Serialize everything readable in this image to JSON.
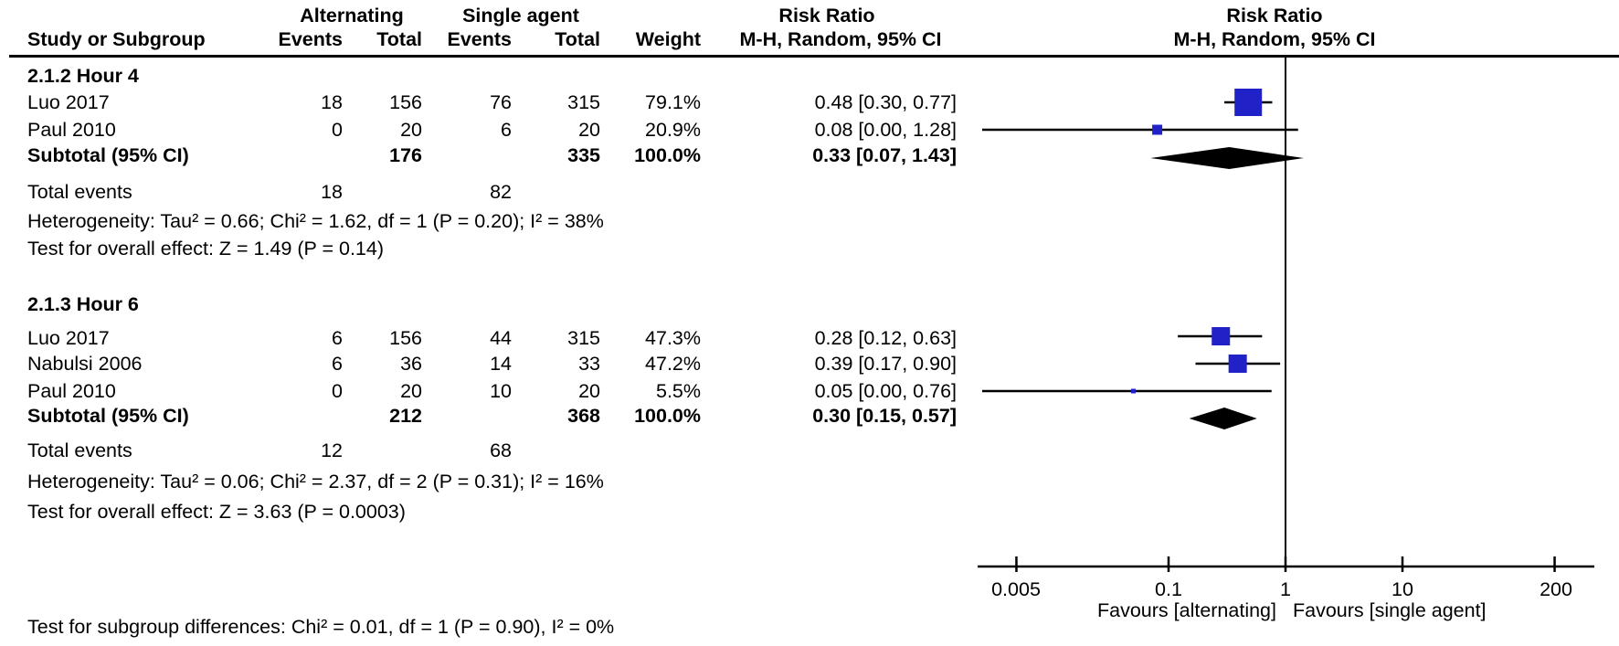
{
  "header": {
    "group1": "Alternating",
    "group2": "Single agent",
    "risk_ratio_left": "Risk Ratio",
    "risk_ratio_right": "Risk Ratio",
    "col_study": "Study or Subgroup",
    "col_events1": "Events",
    "col_total1": "Total",
    "col_events2": "Events",
    "col_total2": "Total",
    "col_weight": "Weight",
    "col_ci_left": "M-H, Random, 95% CI",
    "col_ci_right": "M-H, Random, 95% CI"
  },
  "subgroups": [
    {
      "label": "2.1.2 Hour 4",
      "studies": [
        {
          "study": "Luo 2017",
          "events1": "18",
          "total1": "156",
          "events2": "76",
          "total2": "315",
          "weight": "79.1%",
          "ci_text": "0.48 [0.30, 0.77]"
        },
        {
          "study": "Paul 2010",
          "events1": "0",
          "total1": "20",
          "events2": "6",
          "total2": "20",
          "weight": "20.9%",
          "ci_text": "0.08 [0.00, 1.28]"
        }
      ],
      "subtotal": {
        "label": "Subtotal (95% CI)",
        "total1": "176",
        "total2": "335",
        "weight": "100.0%",
        "ci_text": "0.33 [0.07, 1.43]"
      },
      "total_events": {
        "label": "Total events",
        "v1": "18",
        "v2": "82"
      },
      "heterogeneity": "Heterogeneity: Tau² = 0.66; Chi² = 1.62, df = 1 (P = 0.20); I² = 38%",
      "overall_effect": "Test for overall effect: Z = 1.49 (P = 0.14)"
    },
    {
      "label": "2.1.3 Hour 6",
      "studies": [
        {
          "study": "Luo 2017",
          "events1": "6",
          "total1": "156",
          "events2": "44",
          "total2": "315",
          "weight": "47.3%",
          "ci_text": "0.28 [0.12, 0.63]"
        },
        {
          "study": "Nabulsi 2006",
          "events1": "6",
          "total1": "36",
          "events2": "14",
          "total2": "33",
          "weight": "47.2%",
          "ci_text": "0.39 [0.17, 0.90]"
        },
        {
          "study": "Paul 2010",
          "events1": "0",
          "total1": "20",
          "events2": "10",
          "total2": "20",
          "weight": "5.5%",
          "ci_text": "0.05 [0.00, 0.76]"
        }
      ],
      "subtotal": {
        "label": "Subtotal (95% CI)",
        "total1": "212",
        "total2": "368",
        "weight": "100.0%",
        "ci_text": "0.30 [0.15, 0.57]"
      },
      "total_events": {
        "label": "Total events",
        "v1": "12",
        "v2": "68"
      },
      "heterogeneity": "Heterogeneity: Tau² = 0.06; Chi² = 2.37, df = 2 (P = 0.31); I² = 16%",
      "overall_effect": "Test for overall effect: Z = 3.63 (P = 0.0003)"
    }
  ],
  "footer": {
    "subgroup_diff": "Test for subgroup differences: Chi² = 0.01, df = 1 (P = 0.90), I² = 0%"
  },
  "chart_data": {
    "type": "forest",
    "x_scale": "log",
    "x_range": [
      0.005,
      200
    ],
    "axis_ticks": [
      0.005,
      0.1,
      1,
      10,
      200
    ],
    "axis_tick_labels": [
      "0.005",
      "0.1",
      "1",
      "10",
      "200"
    ],
    "reference_line": 1,
    "favours_left": "Favours [alternating]",
    "favours_right": "Favours [single agent]",
    "colors": {
      "square": "#2121c8",
      "line": "#000000",
      "diamond": "#000000"
    },
    "points": [
      {
        "row": "h4_luo",
        "type": "square",
        "rr": 0.48,
        "low": 0.3,
        "high": 0.77,
        "weight_pct": 79.1
      },
      {
        "row": "h4_paul",
        "type": "square",
        "rr": 0.08,
        "low": 0.0,
        "high": 1.28,
        "weight_pct": 20.9
      },
      {
        "row": "h4_subtotal",
        "type": "diamond",
        "rr": 0.33,
        "low": 0.07,
        "high": 1.43
      },
      {
        "row": "h6_luo",
        "type": "square",
        "rr": 0.28,
        "low": 0.12,
        "high": 0.63,
        "weight_pct": 47.3
      },
      {
        "row": "h6_nabulsi",
        "type": "square",
        "rr": 0.39,
        "low": 0.17,
        "high": 0.9,
        "weight_pct": 47.2
      },
      {
        "row": "h6_paul",
        "type": "square",
        "rr": 0.05,
        "low": 0.0,
        "high": 0.76,
        "weight_pct": 5.5
      },
      {
        "row": "h6_subtotal",
        "type": "diamond",
        "rr": 0.3,
        "low": 0.15,
        "high": 0.57
      }
    ]
  }
}
